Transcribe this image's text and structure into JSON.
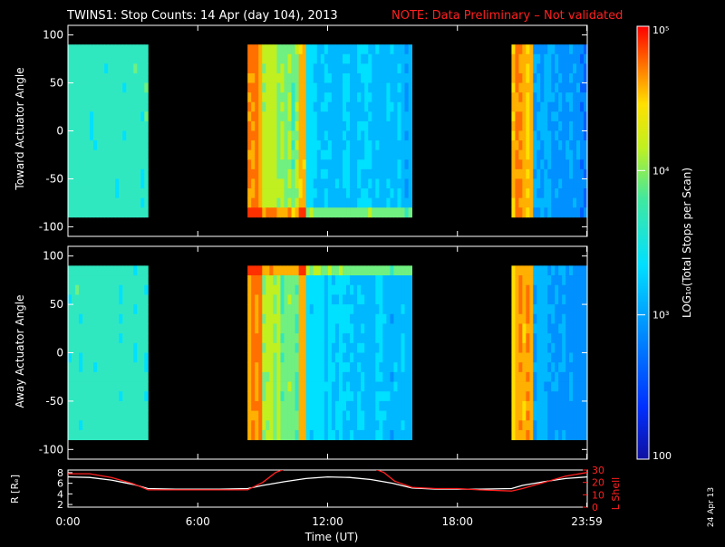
{
  "title": "TWINS1: Stop Counts: 14 Apr (day 104), 2013",
  "note": "NOTE: Data Preliminary – Not validated",
  "date_stamp": "24 Apr 13",
  "colors": {
    "note": "#ff2020",
    "r_line": "#ffffff",
    "l_line": "#ff2020"
  },
  "chart_data": [
    {
      "type": "heatmap",
      "ylabel": "Toward Actuator Angle",
      "ylim": [
        -110,
        110
      ],
      "yticks": [
        -100,
        -50,
        0,
        50,
        100
      ],
      "data_range": [
        -90,
        90
      ],
      "xlim": [
        0,
        24
      ],
      "data_segments": [
        [
          0,
          3.7
        ],
        [
          8.3,
          15.9
        ],
        [
          20.5,
          24
        ]
      ]
    },
    {
      "type": "heatmap",
      "ylabel": "Away Actuator Angle",
      "ylim": [
        -110,
        110
      ],
      "yticks": [
        -100,
        -50,
        0,
        50,
        100
      ],
      "data_range": [
        -90,
        90
      ],
      "xlim": [
        0,
        24
      ],
      "data_segments": [
        [
          0,
          3.7
        ],
        [
          8.3,
          15.9
        ],
        [
          20.5,
          24
        ]
      ]
    },
    {
      "type": "line",
      "xlabel": "Time (UT)",
      "xlim": [
        0,
        24
      ],
      "xticks": [
        "0:00",
        "6:00",
        "12:00",
        "18:00",
        "23:59"
      ],
      "xtick_values": [
        0,
        6,
        12,
        18,
        23.98
      ],
      "left_axis": {
        "label": "R [Rₑ]",
        "ylim": [
          1.5,
          8.5
        ],
        "yticks": [
          2,
          4,
          6,
          8
        ]
      },
      "right_axis": {
        "label": "L Shell",
        "ylim": [
          0,
          30
        ],
        "yticks": [
          0,
          10,
          20,
          30
        ]
      },
      "series": [
        {
          "axis": "left",
          "color": "#ffffff",
          "x": [
            0,
            1,
            2,
            3,
            3.7,
            5,
            6,
            7,
            8.3,
            9,
            10,
            11,
            12,
            13,
            14,
            15,
            15.9,
            17,
            18,
            19,
            20.5,
            21,
            22,
            23,
            24
          ],
          "y": [
            7.2,
            7.1,
            6.6,
            5.8,
            5.0,
            4.9,
            4.9,
            4.9,
            5.0,
            5.6,
            6.3,
            6.9,
            7.2,
            7.1,
            6.7,
            6.0,
            5.1,
            4.9,
            4.9,
            4.9,
            5.0,
            5.6,
            6.3,
            6.9,
            7.2
          ]
        },
        {
          "axis": "right",
          "color": "#ff2020",
          "x": [
            0,
            1,
            2,
            3,
            3.7,
            5,
            6,
            7,
            8.3,
            9,
            9.6,
            10.2,
            14,
            14.6,
            15.1,
            15.9,
            17,
            18,
            19,
            20.5,
            21,
            22,
            23,
            24
          ],
          "y": [
            27,
            27,
            24,
            19,
            14,
            14,
            14,
            14,
            14,
            20,
            28,
            32,
            32,
            28,
            21,
            16,
            15,
            15,
            14,
            13,
            15,
            20,
            25,
            28
          ]
        }
      ]
    }
  ],
  "colorbar": {
    "label": "LOG₁₀(Total Stops per Scan)",
    "tick_labels": [
      "10⁵",
      "10⁴",
      "10³",
      "100"
    ],
    "tick_values": [
      100000,
      10000,
      1000,
      100
    ]
  }
}
